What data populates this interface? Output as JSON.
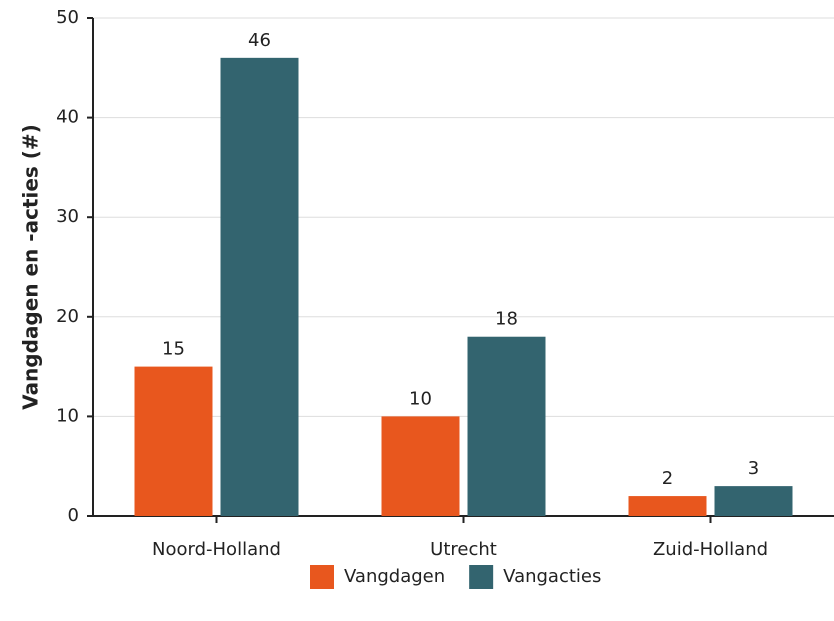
{
  "chart_data": {
    "type": "bar",
    "ylabel": "Vangdagen en -acties (#)",
    "categories": [
      "Noord-Holland",
      "Utrecht",
      "Zuid-Holland"
    ],
    "series": [
      {
        "name": "Vangdagen",
        "color": "#e8571e",
        "values": [
          15,
          10,
          2
        ]
      },
      {
        "name": "Vangacties",
        "color": "#33646f",
        "values": [
          46,
          18,
          3
        ]
      }
    ],
    "ylim": [
      0,
      50
    ],
    "yticks": [
      0,
      10,
      20,
      30,
      40,
      50
    ],
    "grid": true,
    "legend": "bottom"
  }
}
